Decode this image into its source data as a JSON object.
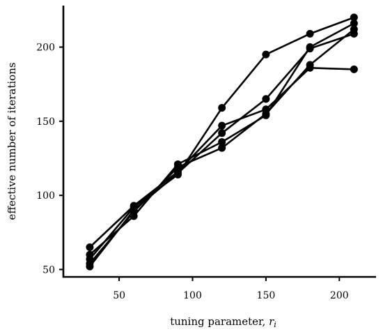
{
  "chart_data": {
    "type": "line",
    "xlabel": "tuning parameter, ",
    "xlabel_var": "r",
    "xlabel_sub": "i",
    "ylabel": "effective number of iterations",
    "xlim": [
      12,
      225
    ],
    "ylim": [
      45,
      228
    ],
    "xticks": [
      50,
      100,
      150,
      200
    ],
    "yticks": [
      50,
      100,
      150,
      200
    ],
    "x": [
      30,
      60,
      90,
      120,
      150,
      180,
      210
    ],
    "series": [
      {
        "values": [
          57,
          92,
          114,
          159,
          195,
          209,
          220
        ]
      },
      {
        "values": [
          65,
          93,
          116,
          147,
          158,
          186,
          185
        ]
      },
      {
        "values": [
          52,
          90,
          115,
          142,
          165,
          199,
          209
        ]
      },
      {
        "values": [
          60,
          86,
          121,
          136,
          154,
          200,
          216
        ]
      },
      {
        "values": [
          54,
          89,
          119,
          132,
          155,
          188,
          212
        ]
      }
    ],
    "grid": false,
    "legend": "none",
    "color": "#000000"
  }
}
